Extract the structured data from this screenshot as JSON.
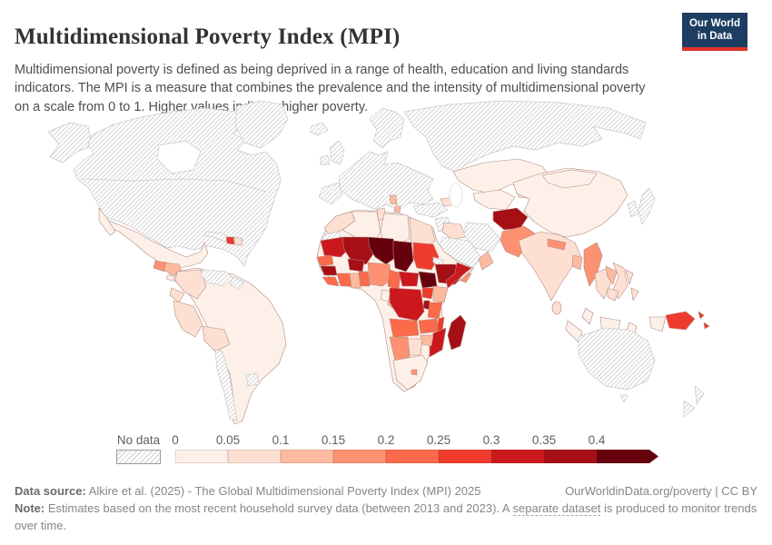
{
  "header": {
    "title": "Multidimensional Poverty Index (MPI)",
    "subtitle": "Multidimensional poverty is defined as being deprived in a range of health, education and living standards indicators. The MPI is a measure that combines the prevalence and the intensity of multidimensional poverty on a scale from 0 to 1. Higher values indicate higher poverty.",
    "logo_line1": "Our World",
    "logo_line2": "in Data"
  },
  "legend": {
    "no_data_label": "No data",
    "ticks": [
      "0",
      "0.05",
      "0.1",
      "0.15",
      "0.2",
      "0.25",
      "0.3",
      "0.35",
      "0.4"
    ]
  },
  "footer": {
    "source_label": "Data source:",
    "source_text": " Alkire et al. (2025) - The Global Multidimensional Poverty Index (MPI) 2025",
    "attribution": "OurWorldinData.org/poverty | CC BY",
    "note_label": "Note:",
    "note_prefix": " Estimates based on the most recent household survey data (between 2013 and 2023). A ",
    "note_link": "separate dataset",
    "note_suffix": " is produced to monitor trends over time."
  },
  "chart_data": {
    "type": "choropleth",
    "title": "Multidimensional Poverty Index (MPI)",
    "scale": "0 to 1, higher = more poverty",
    "bins": [
      "0–0.05",
      "0.05–0.1",
      "0.1–0.15",
      "0.15–0.2",
      "0.2–0.25",
      "0.25–0.3",
      "0.3–0.35",
      "0.35–0.4",
      "0.4+"
    ],
    "bin_colors": [
      "#fdf0e9",
      "#fee0d2",
      "#fcbba1",
      "#fc9272",
      "#fb6a4a",
      "#ef3b2c",
      "#cb181d",
      "#a50f15",
      "#67000d"
    ],
    "no_data_pattern": "gray diagonal hatch",
    "regions": [
      {
        "name": "United States",
        "bin": "No data",
        "color": "hatch"
      },
      {
        "name": "Canada",
        "bin": "No data",
        "color": "hatch"
      },
      {
        "name": "Greenland",
        "bin": "No data",
        "color": "hatch"
      },
      {
        "name": "Mexico",
        "bin": "0–0.05",
        "color": "#fdf0e9"
      },
      {
        "name": "Guatemala",
        "bin": "0.15–0.2",
        "color": "#fc9272"
      },
      {
        "name": "Honduras & Nicaragua",
        "bin": "0.1–0.15",
        "color": "#fcbba1"
      },
      {
        "name": "Costa Rica & Panama",
        "bin": "0–0.05",
        "color": "#fdf0e9"
      },
      {
        "name": "Cuba",
        "bin": "No data",
        "color": "hatch"
      },
      {
        "name": "Haiti",
        "bin": "0.25–0.3",
        "color": "#ef3b2c"
      },
      {
        "name": "Dominican Republic",
        "bin": "0.05–0.1",
        "color": "#fee0d2"
      },
      {
        "name": "South America (underlay)",
        "bin": "0–0.05",
        "color": "#fdf0e9"
      },
      {
        "name": "Colombia",
        "bin": "0.05–0.1",
        "color": "#fee0d2"
      },
      {
        "name": "Venezuela",
        "bin": "No data",
        "color": "hatch"
      },
      {
        "name": "Guyana",
        "bin": "No data",
        "color": "hatch"
      },
      {
        "name": "Ecuador",
        "bin": "0.05–0.1",
        "color": "#fee0d2"
      },
      {
        "name": "Peru",
        "bin": "0.05–0.1",
        "color": "#fee0d2"
      },
      {
        "name": "Bolivia",
        "bin": "0.05–0.1",
        "color": "#fee0d2"
      },
      {
        "name": "Chile",
        "bin": "No data",
        "color": "hatch"
      },
      {
        "name": "Uruguay",
        "bin": "No data",
        "color": "hatch"
      },
      {
        "name": "Europe (most countries)",
        "bin": "No data",
        "color": "hatch"
      },
      {
        "name": "Albania & North Macedonia",
        "bin": "0.1–0.15",
        "color": "#fcbba1"
      },
      {
        "name": "Russia",
        "bin": "No data",
        "color": "hatch"
      },
      {
        "name": "Turkey",
        "bin": "No data",
        "color": "hatch"
      },
      {
        "name": "Syria & Jordan",
        "bin": "No data",
        "color": "hatch"
      },
      {
        "name": "Iraq",
        "bin": "0.05–0.1",
        "color": "#fee0d2"
      },
      {
        "name": "Iran",
        "bin": "No data",
        "color": "hatch"
      },
      {
        "name": "Saudi Arabia",
        "bin": "No data",
        "color": "hatch"
      },
      {
        "name": "Yemen",
        "bin": "0.15–0.2",
        "color": "#fc9272"
      },
      {
        "name": "Oman",
        "bin": "0.1–0.15",
        "color": "#fcbba1"
      },
      {
        "name": "Azerbaijan & Georgia",
        "bin": "0.05–0.1",
        "color": "#fee0d2"
      },
      {
        "name": "Kazakhstan",
        "bin": "0–0.05",
        "color": "#fdf0e9"
      },
      {
        "name": "Uzbekistan & Turkmenistan",
        "bin": "0–0.05",
        "color": "#fdf0e9"
      },
      {
        "name": "Kyrgyzstan & Tajikistan",
        "bin": "0.05–0.1",
        "color": "#fee0d2"
      },
      {
        "name": "Afghanistan",
        "bin": "0.35–0.4",
        "color": "#a50f15"
      },
      {
        "name": "Pakistan",
        "bin": "0.15–0.2",
        "color": "#fc9272"
      },
      {
        "name": "India",
        "bin": "0.05–0.1",
        "color": "#fee0d2"
      },
      {
        "name": "Nepal",
        "bin": "0.15–0.2",
        "color": "#fc9272"
      },
      {
        "name": "Bangladesh",
        "bin": "0.1–0.15",
        "color": "#fcbba1"
      },
      {
        "name": "Sri Lanka",
        "bin": "0.05–0.1",
        "color": "#fee0d2"
      },
      {
        "name": "Myanmar",
        "bin": "0.15–0.2",
        "color": "#fc9272"
      },
      {
        "name": "China",
        "bin": "0–0.05",
        "color": "#fdf0e9"
      },
      {
        "name": "Mongolia",
        "bin": "0–0.05",
        "color": "#fdf0e9"
      },
      {
        "name": "South Korea",
        "bin": "No data",
        "color": "hatch"
      },
      {
        "name": "Japan",
        "bin": "No data",
        "color": "hatch"
      },
      {
        "name": "Thailand",
        "bin": "0.05–0.1",
        "color": "#fee0d2"
      },
      {
        "name": "Laos",
        "bin": "0.1–0.15",
        "color": "#fcbba1"
      },
      {
        "name": "Vietnam",
        "bin": "0.05–0.1",
        "color": "#fee0d2"
      },
      {
        "name": "Cambodia",
        "bin": "0.05–0.1",
        "color": "#fee0d2"
      },
      {
        "name": "Malaysia",
        "bin": "0–0.05",
        "color": "#fdf0e9"
      },
      {
        "name": "Philippines",
        "bin": "0.05–0.1",
        "color": "#fee0d2"
      },
      {
        "name": "Indonesia",
        "bin": "0–0.05",
        "color": "#fdf0e9"
      },
      {
        "name": "Papua New Guinea",
        "bin": "0.25–0.3",
        "color": "#ef3b2c"
      },
      {
        "name": "Australia",
        "bin": "No data",
        "color": "hatch"
      },
      {
        "name": "New Zealand",
        "bin": "No data",
        "color": "hatch"
      },
      {
        "name": "Africa (underlay)",
        "bin": "0–0.05",
        "color": "#fdf0e9"
      },
      {
        "name": "Morocco",
        "bin": "0.05–0.1",
        "color": "#fee0d2"
      },
      {
        "name": "Western Sahara",
        "bin": "No data",
        "color": "hatch"
      },
      {
        "name": "Algeria",
        "bin": "0–0.05",
        "color": "#fdf0e9"
      },
      {
        "name": "Tunisia",
        "bin": "0.05–0.1",
        "color": "#fee0d2"
      },
      {
        "name": "Libya",
        "bin": "0–0.05",
        "color": "#fdf0e9"
      },
      {
        "name": "Egypt",
        "bin": "0.05–0.1",
        "color": "#fee0d2"
      },
      {
        "name": "Mauritania",
        "bin": "0.3–0.35",
        "color": "#cb181d"
      },
      {
        "name": "Mali",
        "bin": "0.35–0.4",
        "color": "#a50f15"
      },
      {
        "name": "Niger",
        "bin": "0.4+",
        "color": "#67000d"
      },
      {
        "name": "Chad",
        "bin": "0.4+",
        "color": "#67000d"
      },
      {
        "name": "Sudan",
        "bin": "0.25–0.3",
        "color": "#ef3b2c"
      },
      {
        "name": "Eritrea",
        "bin": "No data",
        "color": "hatch"
      },
      {
        "name": "Senegal",
        "bin": "0.2–0.25",
        "color": "#fb6a4a"
      },
      {
        "name": "Guinea",
        "bin": "0.35–0.4",
        "color": "#a50f15"
      },
      {
        "name": "Sierra Leone & Liberia",
        "bin": "0.2–0.25",
        "color": "#fb6a4a"
      },
      {
        "name": "Cote d'Ivoire",
        "bin": "0.2–0.25",
        "color": "#fb6a4a"
      },
      {
        "name": "Burkina Faso",
        "bin": "0.35–0.4",
        "color": "#a50f15"
      },
      {
        "name": "Ghana",
        "bin": "0.1–0.15",
        "color": "#fcbba1"
      },
      {
        "name": "Togo & Benin",
        "bin": "0.2–0.25",
        "color": "#fb6a4a"
      },
      {
        "name": "Nigeria",
        "bin": "0.15–0.2",
        "color": "#fc9272"
      },
      {
        "name": "Cameroon",
        "bin": "0.2–0.25",
        "color": "#fb6a4a"
      },
      {
        "name": "Central African Republic",
        "bin": "0.3–0.35",
        "color": "#cb181d"
      },
      {
        "name": "South Sudan",
        "bin": "0.4+",
        "color": "#67000d"
      },
      {
        "name": "Ethiopia",
        "bin": "0.35–0.4",
        "color": "#a50f15"
      },
      {
        "name": "Somalia",
        "bin": "0.3–0.35",
        "color": "#cb181d"
      },
      {
        "name": "Kenya",
        "bin": "0.1–0.15",
        "color": "#fcbba1"
      },
      {
        "name": "Uganda",
        "bin": "0.25–0.3",
        "color": "#ef3b2c"
      },
      {
        "name": "Rwanda & Burundi",
        "bin": "0.35–0.4",
        "color": "#a50f15"
      },
      {
        "name": "Democratic Republic of Congo",
        "bin": "0.3–0.35",
        "color": "#cb181d"
      },
      {
        "name": "Gabon",
        "bin": "0–0.05",
        "color": "#fdf0e9"
      },
      {
        "name": "Republic of Congo",
        "bin": "0.1–0.15",
        "color": "#fcbba1"
      },
      {
        "name": "Tanzania",
        "bin": "0.2–0.25",
        "color": "#fb6a4a"
      },
      {
        "name": "Angola",
        "bin": "0.2–0.25",
        "color": "#fb6a4a"
      },
      {
        "name": "Zambia",
        "bin": "0.2–0.25",
        "color": "#fb6a4a"
      },
      {
        "name": "Malawi",
        "bin": "0.25–0.3",
        "color": "#ef3b2c"
      },
      {
        "name": "Mozambique",
        "bin": "0.3–0.35",
        "color": "#cb181d"
      },
      {
        "name": "Zimbabwe",
        "bin": "0.1–0.15",
        "color": "#fcbba1"
      },
      {
        "name": "Namibia",
        "bin": "0.15–0.2",
        "color": "#fc9272"
      },
      {
        "name": "Botswana",
        "bin": "0.05–0.1",
        "color": "#fee0d2"
      },
      {
        "name": "South Africa",
        "bin": "0–0.05",
        "color": "#fdf0e9"
      },
      {
        "name": "Lesotho",
        "bin": "0.15–0.2",
        "color": "#fc9272"
      },
      {
        "name": "Madagascar",
        "bin": "0.35–0.4",
        "color": "#a50f15"
      }
    ]
  }
}
